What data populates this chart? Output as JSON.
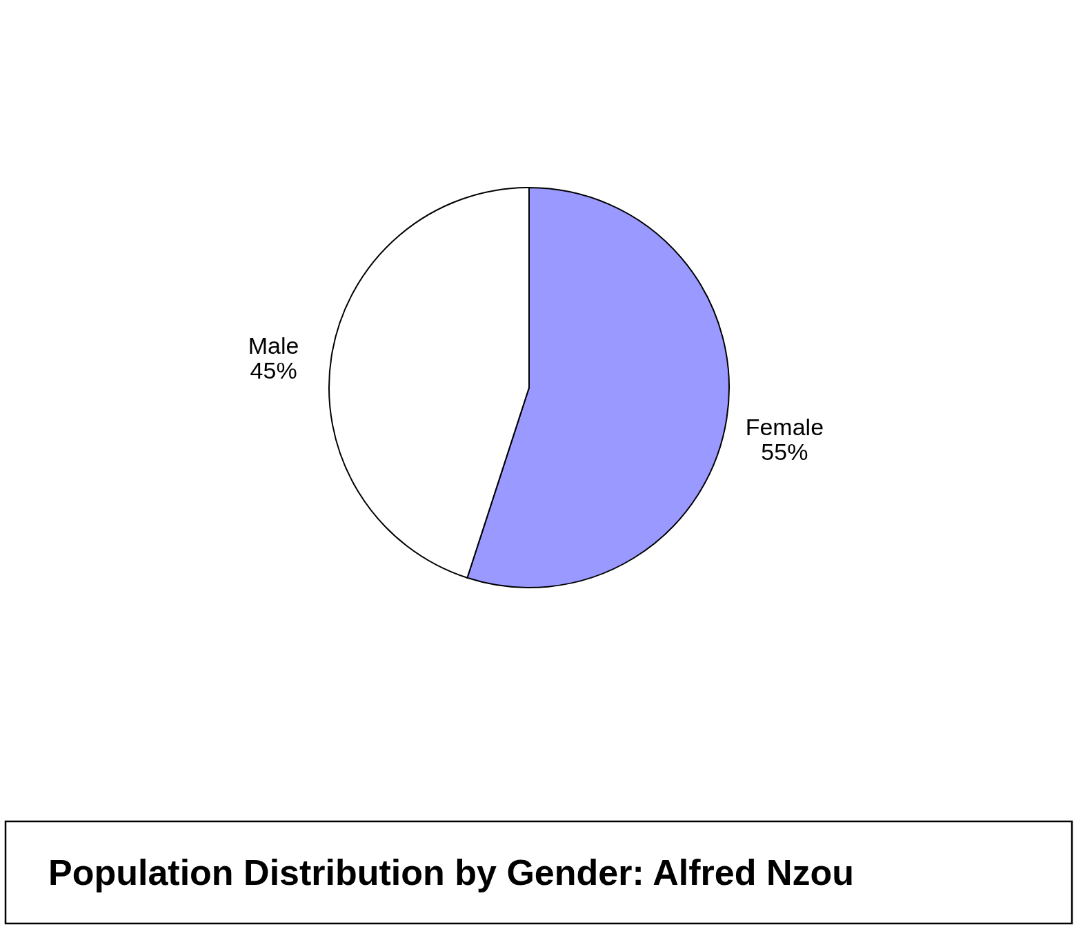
{
  "chart_data": {
    "type": "pie",
    "title": "Population Distribution by Gender: Alfred Nzou",
    "categories": [
      "Female",
      "Male"
    ],
    "values": [
      55,
      45
    ],
    "value_labels": [
      "55%",
      "45%"
    ],
    "colors": [
      "#9999ff",
      "#ffffff"
    ]
  }
}
